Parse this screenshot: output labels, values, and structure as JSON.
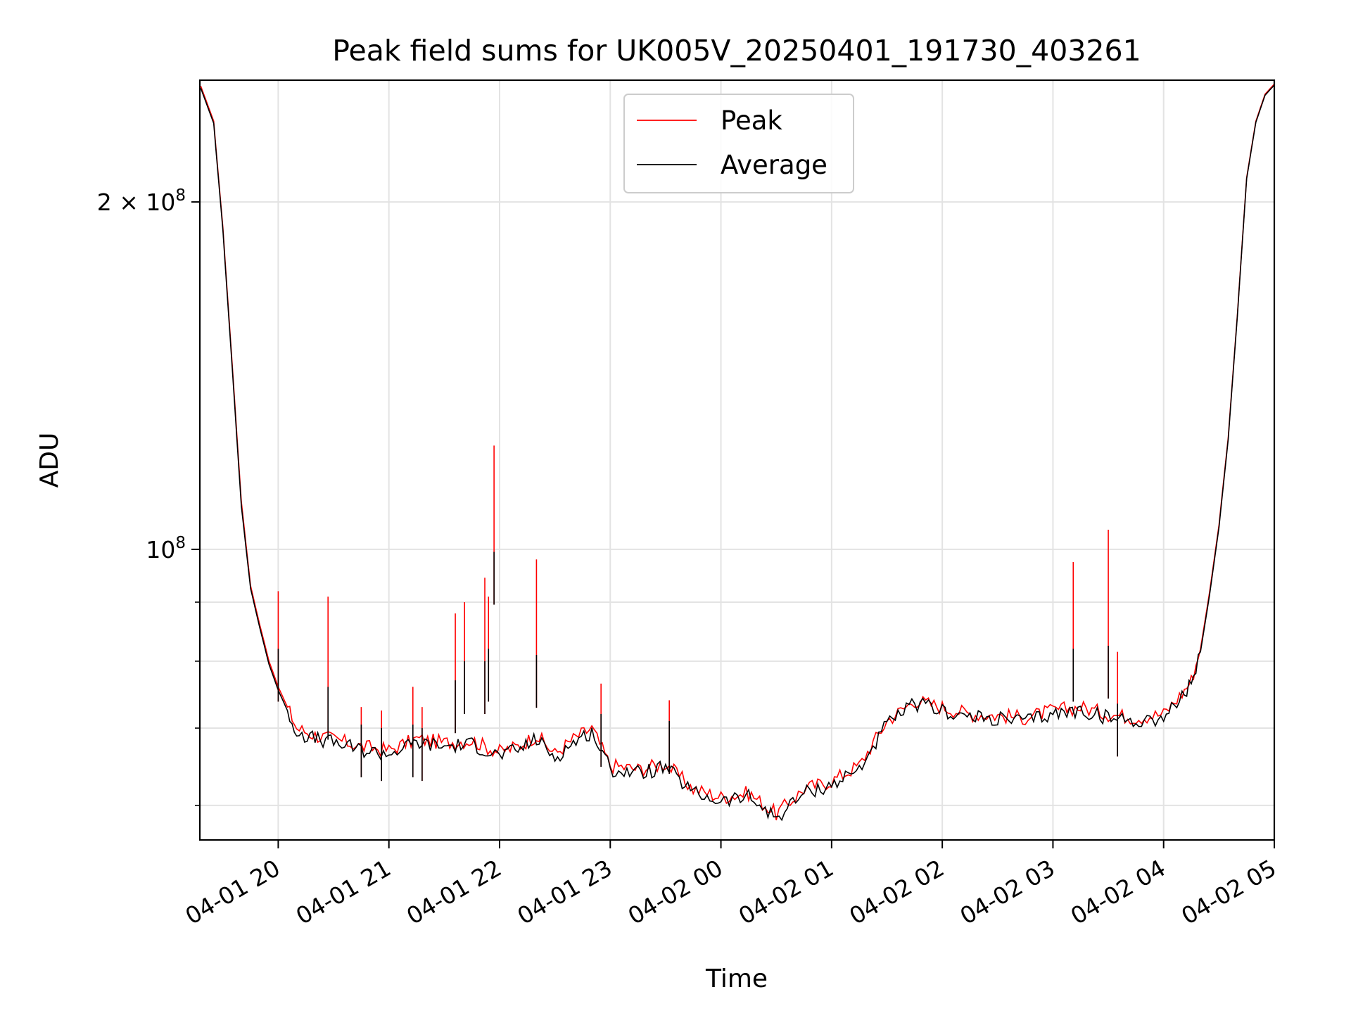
{
  "chart_data": {
    "type": "line",
    "title": "Peak field sums for UK005V_20250401_191730_403261",
    "xlabel": "Time",
    "ylabel": "ADU",
    "yscale": "log",
    "ylim": [
      56000000,
      255000000
    ],
    "xlim": [
      "2025-04-01 19:17:30",
      "2025-04-02 05:00:00"
    ],
    "grid": true,
    "legend_position": "top-center",
    "x_tick_labels": [
      "04-01 20",
      "04-01 21",
      "04-01 22",
      "04-01 23",
      "04-02 00",
      "04-02 01",
      "04-02 02",
      "04-02 03",
      "04-02 04",
      "04-02 05"
    ],
    "x_ticks": [
      "2025-04-01 20:00",
      "2025-04-01 21:00",
      "2025-04-01 22:00",
      "2025-04-01 23:00",
      "2025-04-02 00:00",
      "2025-04-02 01:00",
      "2025-04-02 02:00",
      "2025-04-02 03:00",
      "2025-04-02 04:00",
      "2025-04-02 05:00"
    ],
    "y_major_ticks": [
      {
        "value": 100000000,
        "base": "10",
        "exp": "8",
        "coef": ""
      },
      {
        "value": 200000000,
        "base": "10",
        "exp": "8",
        "coef": "2 × "
      }
    ],
    "y_minor_ticks": [
      60000000,
      70000000,
      80000000,
      90000000
    ],
    "series": [
      {
        "name": "Peak",
        "color": "#ff0000",
        "x": [
          "2025-04-01 19:18",
          "2025-04-01 19:25",
          "2025-04-01 19:30",
          "2025-04-01 19:35",
          "2025-04-01 19:40",
          "2025-04-01 19:45",
          "2025-04-01 19:50",
          "2025-04-01 19:55",
          "2025-04-01 20:00",
          "2025-04-01 20:05",
          "2025-04-01 20:10",
          "2025-04-01 20:20",
          "2025-04-01 20:30",
          "2025-04-01 20:45",
          "2025-04-01 21:00",
          "2025-04-01 21:15",
          "2025-04-01 21:30",
          "2025-04-01 21:45",
          "2025-04-01 21:55",
          "2025-04-01 22:00",
          "2025-04-01 22:10",
          "2025-04-01 22:20",
          "2025-04-01 22:30",
          "2025-04-01 22:40",
          "2025-04-01 22:50",
          "2025-04-01 23:00",
          "2025-04-01 23:15",
          "2025-04-01 23:30",
          "2025-04-01 23:45",
          "2025-04-02 00:00",
          "2025-04-02 00:15",
          "2025-04-02 00:30",
          "2025-04-02 00:45",
          "2025-04-02 01:00",
          "2025-04-02 01:15",
          "2025-04-02 01:30",
          "2025-04-02 01:45",
          "2025-04-02 02:00",
          "2025-04-02 02:15",
          "2025-04-02 02:30",
          "2025-04-02 02:45",
          "2025-04-02 03:00",
          "2025-04-02 03:15",
          "2025-04-02 03:30",
          "2025-04-02 03:45",
          "2025-04-02 04:00",
          "2025-04-02 04:10",
          "2025-04-02 04:15",
          "2025-04-02 04:20",
          "2025-04-02 04:25",
          "2025-04-02 04:30",
          "2025-04-02 04:35",
          "2025-04-02 04:40",
          "2025-04-02 04:45",
          "2025-04-02 04:50",
          "2025-04-02 04:55",
          "2025-04-02 05:00"
        ],
        "y": [
          252000000,
          235000000,
          190000000,
          145000000,
          110000000,
          93000000,
          86000000,
          80000000,
          76000000,
          73000000,
          70000000,
          69000000,
          68500000,
          67500000,
          67000000,
          68500000,
          68000000,
          68300000,
          67200000,
          66800000,
          67500000,
          69000000,
          66500000,
          68500000,
          70000000,
          65000000,
          64500000,
          65200000,
          62000000,
          61000000,
          61500000,
          59000000,
          62000000,
          63000000,
          65000000,
          71000000,
          74000000,
          73000000,
          72000000,
          71800000,
          71500000,
          72500000,
          73000000,
          72000000,
          71500000,
          72000000,
          75000000,
          77000000,
          82000000,
          92000000,
          105000000,
          125000000,
          160000000,
          210000000,
          235000000,
          248000000,
          253000000
        ]
      },
      {
        "name": "Average",
        "color": "#000000",
        "x": [
          "2025-04-01 19:18",
          "2025-04-01 19:25",
          "2025-04-01 19:30",
          "2025-04-01 19:35",
          "2025-04-01 19:40",
          "2025-04-01 19:45",
          "2025-04-01 19:50",
          "2025-04-01 19:55",
          "2025-04-01 20:00",
          "2025-04-01 20:05",
          "2025-04-01 20:10",
          "2025-04-01 20:20",
          "2025-04-01 20:30",
          "2025-04-01 20:45",
          "2025-04-01 21:00",
          "2025-04-01 21:15",
          "2025-04-01 21:30",
          "2025-04-01 21:45",
          "2025-04-01 21:55",
          "2025-04-01 22:00",
          "2025-04-01 22:10",
          "2025-04-01 22:20",
          "2025-04-01 22:30",
          "2025-04-01 22:40",
          "2025-04-01 22:50",
          "2025-04-01 23:00",
          "2025-04-01 23:15",
          "2025-04-01 23:30",
          "2025-04-01 23:45",
          "2025-04-02 00:00",
          "2025-04-02 00:15",
          "2025-04-02 00:30",
          "2025-04-02 00:45",
          "2025-04-02 01:00",
          "2025-04-02 01:15",
          "2025-04-02 01:30",
          "2025-04-02 01:45",
          "2025-04-02 02:00",
          "2025-04-02 02:15",
          "2025-04-02 02:30",
          "2025-04-02 02:45",
          "2025-04-02 03:00",
          "2025-04-02 03:15",
          "2025-04-02 03:30",
          "2025-04-02 03:45",
          "2025-04-02 04:00",
          "2025-04-02 04:10",
          "2025-04-02 04:15",
          "2025-04-02 04:20",
          "2025-04-02 04:25",
          "2025-04-02 04:30",
          "2025-04-02 04:35",
          "2025-04-02 04:40",
          "2025-04-02 04:45",
          "2025-04-02 04:50",
          "2025-04-02 04:55",
          "2025-04-02 05:00"
        ],
        "y": [
          251000000,
          234000000,
          189000000,
          144000000,
          109000000,
          92500000,
          85500000,
          79500000,
          75500000,
          72500000,
          69500000,
          68500000,
          68000000,
          67000000,
          66500000,
          68000000,
          67500000,
          67800000,
          66700000,
          66300000,
          67000000,
          68500000,
          66000000,
          68000000,
          69500000,
          64500000,
          64000000,
          64700000,
          61500000,
          60500000,
          61000000,
          58500000,
          61500000,
          62500000,
          64500000,
          70500000,
          73500000,
          72500000,
          71500000,
          71300000,
          71000000,
          72000000,
          72500000,
          71500000,
          71000000,
          71500000,
          74500000,
          76500000,
          81500000,
          91500000,
          104500000,
          124500000,
          159500000,
          209500000,
          234500000,
          247500000,
          252500000
        ]
      }
    ],
    "spikes": [
      {
        "x": "2025-04-01 20:00",
        "peak": 92000000,
        "average": 82000000
      },
      {
        "x": "2025-04-01 20:27",
        "peak": 91000000,
        "average": 76000000
      },
      {
        "x": "2025-04-01 20:45",
        "peak": 73000000,
        "average": 70500000
      },
      {
        "x": "2025-04-01 20:56",
        "peak": 72500000,
        "average": 70000000
      },
      {
        "x": "2025-04-01 21:13",
        "peak": 76000000,
        "average": 70500000
      },
      {
        "x": "2025-04-01 21:18",
        "peak": 73000000,
        "average": 70000000
      },
      {
        "x": "2025-04-01 21:36",
        "peak": 88000000,
        "average": 77000000
      },
      {
        "x": "2025-04-01 21:41",
        "peak": 90000000,
        "average": 80000000
      },
      {
        "x": "2025-04-01 21:52",
        "peak": 94500000,
        "average": 80000000
      },
      {
        "x": "2025-04-01 21:54",
        "peak": 91000000,
        "average": 82000000
      },
      {
        "x": "2025-04-01 21:57",
        "peak": 123000000,
        "average": 99500000
      },
      {
        "x": "2025-04-01 22:20",
        "peak": 98000000,
        "average": 81000000
      },
      {
        "x": "2025-04-01 22:55",
        "peak": 76500000,
        "average": 72000000
      },
      {
        "x": "2025-04-01 23:32",
        "peak": 74000000,
        "average": 71000000
      },
      {
        "x": "2025-04-02 03:11",
        "peak": 97500000,
        "average": 82000000
      },
      {
        "x": "2025-04-02 03:30",
        "peak": 104000000,
        "average": 82500000
      },
      {
        "x": "2025-04-02 03:35",
        "peak": 81500000,
        "average": 73500000
      }
    ]
  }
}
